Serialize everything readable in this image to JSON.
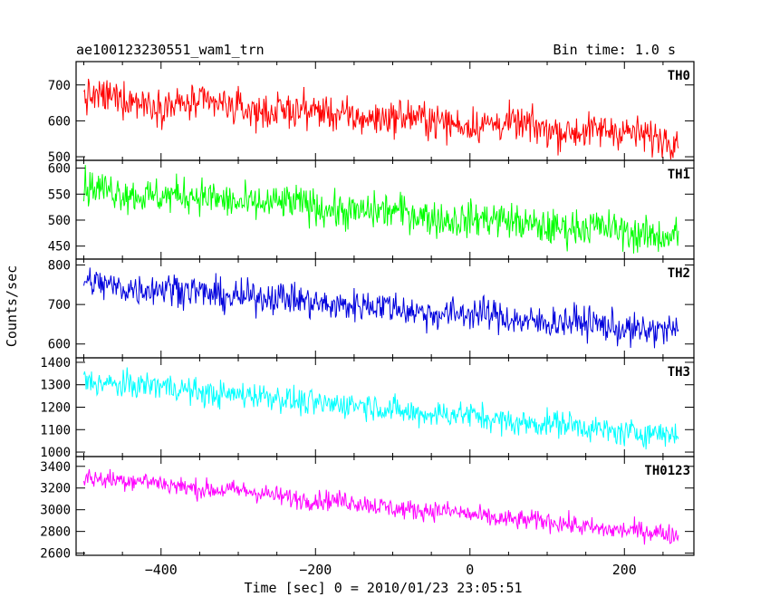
{
  "header": {
    "left_title": "ae100123230551_wam1_trn",
    "right_title": "Bin time: 1.0 s"
  },
  "chart_data": {
    "type": "line",
    "title": "ae100123230551_wam1_trn",
    "subtitle": "Bin time: 1.0 s",
    "xlabel": "Time [sec] 0 = 2010/01/23 23:05:51",
    "ylabel": "Counts/sec",
    "xlim": [
      -510,
      290
    ],
    "x_ticks": [
      -400,
      -200,
      0,
      200
    ],
    "x_tick_labels": [
      "−400",
      "−200",
      "0",
      "200"
    ],
    "x_start": -500,
    "x_end": 270,
    "bin_time": 1.0,
    "grid": false,
    "series": [
      {
        "name": "TH0",
        "color": "#ff0000",
        "ylim": [
          490,
          765
        ],
        "y_ticks": [
          500,
          600,
          700
        ],
        "y_tick_labels": [
          "500",
          "600",
          "700"
        ],
        "start": 665,
        "end": 555,
        "noise": 45
      },
      {
        "name": "TH1",
        "color": "#00ff00",
        "ylim": [
          425,
          615
        ],
        "y_ticks": [
          450,
          500,
          550,
          600
        ],
        "y_tick_labels": [
          "450",
          "500",
          "550",
          "600"
        ],
        "start": 560,
        "end": 470,
        "noise": 32
      },
      {
        "name": "TH2",
        "color": "#0000dd",
        "ylim": [
          565,
          815
        ],
        "y_ticks": [
          600,
          700,
          800
        ],
        "y_tick_labels": [
          "600",
          "700",
          "800"
        ],
        "start": 755,
        "end": 630,
        "noise": 38
      },
      {
        "name": "TH3",
        "color": "#00ffff",
        "ylim": [
          980,
          1420
        ],
        "y_ticks": [
          1000,
          1100,
          1200,
          1300,
          1400
        ],
        "y_tick_labels": [
          "1000",
          "1100",
          "1200",
          "1300",
          "1400"
        ],
        "start": 1320,
        "end": 1070,
        "noise": 55
      },
      {
        "name": "TH0123",
        "color": "#ff00ff",
        "ylim": [
          2580,
          3490
        ],
        "y_ticks": [
          2600,
          2800,
          3000,
          3200,
          3400
        ],
        "y_tick_labels": [
          "2600",
          "2800",
          "3000",
          "3200",
          "3400"
        ],
        "start": 3310,
        "end": 2760,
        "noise": 85
      }
    ]
  }
}
